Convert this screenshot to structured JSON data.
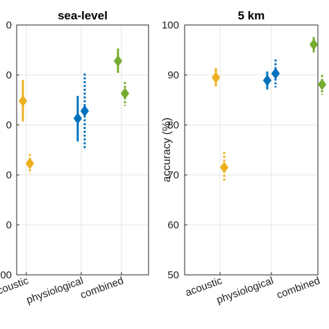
{
  "chart_data": [
    {
      "type": "scatter",
      "title": "sea-level",
      "ylabel": "",
      "categories": [
        "acoustic",
        "physiological",
        "combined"
      ],
      "ylim": [
        50,
        100
      ],
      "yticks": [
        "00",
        "0",
        "0",
        "0",
        "0",
        "0"
      ],
      "grid": true,
      "series": [
        {
          "category": "acoustic",
          "style": "solid",
          "color": "#EDB120",
          "y": 84.8,
          "low": 80.7,
          "high": 89.0
        },
        {
          "category": "acoustic",
          "style": "dotted",
          "color": "#EDB120",
          "y": 72.3,
          "low": 70.3,
          "high": 74.2
        },
        {
          "category": "physiological",
          "style": "solid",
          "color": "#0072BD",
          "y": 81.3,
          "low": 76.7,
          "high": 85.8
        },
        {
          "category": "physiological",
          "style": "dotted",
          "color": "#0072BD",
          "y": 82.8,
          "low": 75.0,
          "high": 90.3
        },
        {
          "category": "combined",
          "style": "solid",
          "color": "#77AC30",
          "y": 92.8,
          "low": 90.4,
          "high": 95.3
        },
        {
          "category": "combined",
          "style": "dotted",
          "color": "#77AC30",
          "y": 86.3,
          "low": 83.8,
          "high": 88.6
        }
      ]
    },
    {
      "type": "scatter",
      "title": "5 km",
      "ylabel": "accuracy (%)",
      "categories": [
        "acoustic",
        "physiological",
        "combined"
      ],
      "ylim": [
        50,
        100
      ],
      "yticks": [
        "50",
        "60",
        "70",
        "80",
        "90",
        "100"
      ],
      "grid": true,
      "series": [
        {
          "category": "acoustic",
          "style": "solid",
          "color": "#EDB120",
          "y": 89.5,
          "low": 87.7,
          "high": 91.4
        },
        {
          "category": "acoustic",
          "style": "dotted",
          "color": "#EDB120",
          "y": 71.5,
          "low": 68.7,
          "high": 74.6
        },
        {
          "category": "physiological",
          "style": "solid",
          "color": "#0072BD",
          "y": 88.9,
          "low": 87.1,
          "high": 90.7
        },
        {
          "category": "physiological",
          "style": "dotted",
          "color": "#0072BD",
          "y": 90.3,
          "low": 87.5,
          "high": 93.1
        },
        {
          "category": "combined",
          "style": "solid",
          "color": "#77AC30",
          "y": 96.1,
          "low": 94.5,
          "high": 97.6
        },
        {
          "category": "combined",
          "style": "dotted",
          "color": "#77AC30",
          "y": 88.1,
          "low": 86.0,
          "high": 90.0
        }
      ]
    }
  ]
}
